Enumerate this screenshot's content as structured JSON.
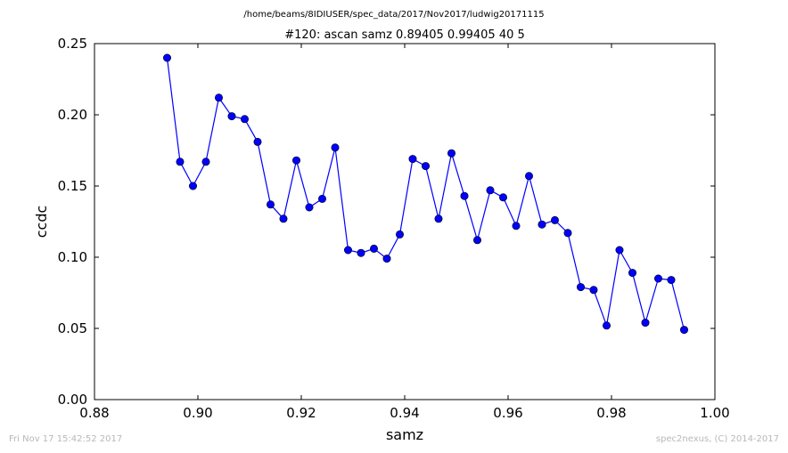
{
  "footer": {
    "timestamp": "Fri Nov 17 15:42:52 2017",
    "credit": "spec2nexus, (C) 2014-2017"
  },
  "chart_data": {
    "type": "line",
    "suptitle": "/home/beams/8IDIUSER/spec_data/2017/Nov2017/ludwig20171115",
    "title": "#120: ascan  samz 0.89405 0.99405  40 5",
    "xlabel": "samz",
    "ylabel": "ccdc",
    "xlim": [
      0.88,
      1.0
    ],
    "ylim": [
      0.0,
      0.25
    ],
    "xticks": [
      "0.88",
      "0.90",
      "0.92",
      "0.94",
      "0.96",
      "0.98",
      "1.00"
    ],
    "yticks": [
      "0.00",
      "0.05",
      "0.10",
      "0.15",
      "0.20",
      "0.25"
    ],
    "grid": false,
    "color": "#0000ff",
    "marker": "circle",
    "series": [
      {
        "x": [
          0.89405,
          0.89655,
          0.89905,
          0.90155,
          0.90405,
          0.90655,
          0.90905,
          0.91155,
          0.91405,
          0.91655,
          0.91905,
          0.92155,
          0.92405,
          0.92655,
          0.92905,
          0.93155,
          0.93405,
          0.93655,
          0.93905,
          0.94155,
          0.94405,
          0.94655,
          0.94905,
          0.95155,
          0.95405,
          0.95655,
          0.95905,
          0.96155,
          0.96405,
          0.96655,
          0.96905,
          0.97155,
          0.97405,
          0.97655,
          0.97905,
          0.98155,
          0.98405,
          0.98655,
          0.98905,
          0.99155,
          0.99405
        ],
        "y": [
          0.24,
          0.167,
          0.15,
          0.167,
          0.212,
          0.199,
          0.197,
          0.181,
          0.137,
          0.127,
          0.168,
          0.135,
          0.141,
          0.177,
          0.105,
          0.103,
          0.106,
          0.099,
          0.116,
          0.169,
          0.164,
          0.127,
          0.173,
          0.143,
          0.112,
          0.147,
          0.142,
          0.122,
          0.157,
          0.123,
          0.126,
          0.117,
          0.079,
          0.077,
          0.052,
          0.105,
          0.089,
          0.054,
          0.085,
          0.084,
          0.049
        ]
      }
    ]
  }
}
